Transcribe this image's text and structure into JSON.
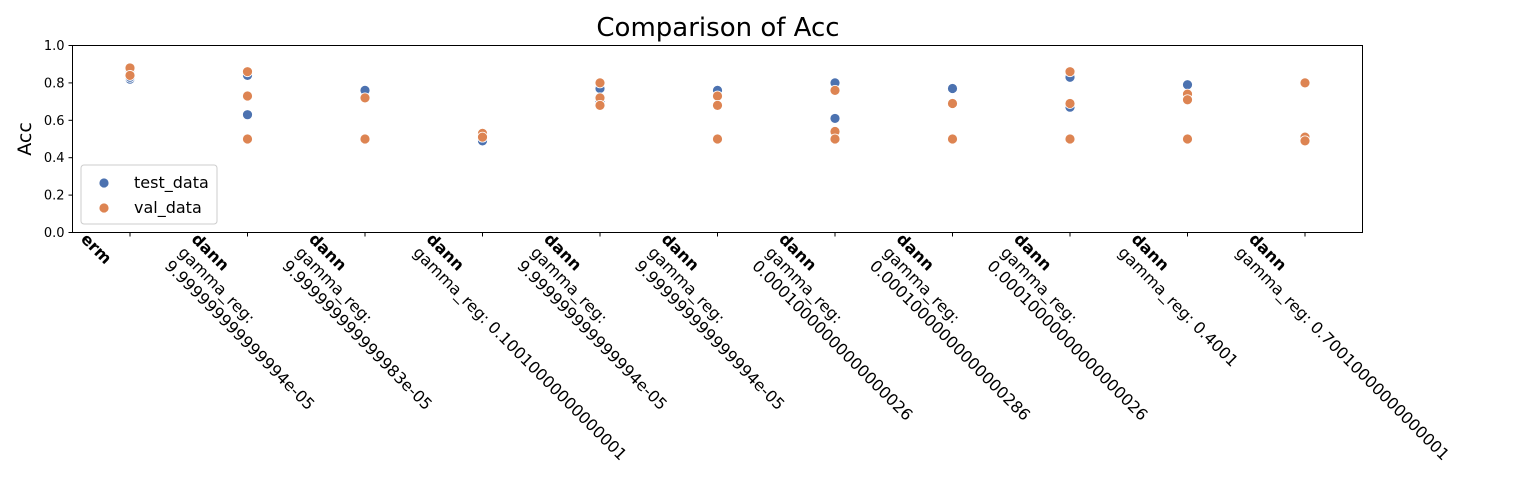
{
  "chart_data": {
    "type": "scatter",
    "title": "Comparison of Acc",
    "xlabel": "",
    "ylabel": "Acc",
    "ylim": [
      0.0,
      1.0
    ],
    "yticks": [
      "0.0",
      "0.2",
      "0.4",
      "0.6",
      "0.8",
      "1.0"
    ],
    "grid": false,
    "legend_position": "lower-left",
    "categories": [
      {
        "main": "erm",
        "sub": []
      },
      {
        "main": "dann",
        "sub": [
          "gamma_reg:",
          "9.999999999999994e-05"
        ]
      },
      {
        "main": "dann",
        "sub": [
          "gamma_reg:",
          "9.999999999999983e-05"
        ]
      },
      {
        "main": "dann",
        "sub": [
          "gamma_reg: 0.10010000000000001"
        ]
      },
      {
        "main": "dann",
        "sub": [
          "gamma_reg:",
          "9.999999999999994e-05"
        ]
      },
      {
        "main": "dann",
        "sub": [
          "gamma_reg:",
          "9.999999999999994e-05"
        ]
      },
      {
        "main": "dann",
        "sub": [
          "gamma_reg:",
          "0.00010000000000000026"
        ]
      },
      {
        "main": "dann",
        "sub": [
          "gamma_reg:",
          "0.00010000000000000286"
        ]
      },
      {
        "main": "dann",
        "sub": [
          "gamma_reg:",
          "0.00010000000000000026"
        ]
      },
      {
        "main": "dann",
        "sub": [
          "gamma_reg: 0.4001"
        ]
      },
      {
        "main": "dann",
        "sub": [
          "gamma_reg: 0.70010000000000001"
        ]
      }
    ],
    "series": [
      {
        "name": "test_data",
        "color": "#4c72b0",
        "points": [
          [
            0,
            0.82
          ],
          [
            0,
            0.87
          ],
          [
            0,
            0.83
          ],
          [
            1,
            0.84
          ],
          [
            1,
            0.63
          ],
          [
            1,
            0.5
          ],
          [
            2,
            0.76
          ],
          [
            2,
            0.5
          ],
          [
            3,
            0.49
          ],
          [
            3,
            0.51
          ],
          [
            4,
            0.77
          ],
          [
            4,
            0.72
          ],
          [
            4,
            0.7
          ],
          [
            5,
            0.76
          ],
          [
            5,
            0.68
          ],
          [
            5,
            0.5
          ],
          [
            6,
            0.8
          ],
          [
            6,
            0.61
          ],
          [
            6,
            0.5
          ],
          [
            7,
            0.77
          ],
          [
            7,
            0.5
          ],
          [
            8,
            0.83
          ],
          [
            8,
            0.67
          ],
          [
            8,
            0.5
          ],
          [
            9,
            0.79
          ],
          [
            9,
            0.5
          ],
          [
            10,
            0.8
          ],
          [
            10,
            0.5
          ]
        ]
      },
      {
        "name": "val_data",
        "color": "#dd8452",
        "points": [
          [
            0,
            0.88
          ],
          [
            0,
            0.84
          ],
          [
            1,
            0.86
          ],
          [
            1,
            0.73
          ],
          [
            1,
            0.5
          ],
          [
            2,
            0.72
          ],
          [
            2,
            0.5
          ],
          [
            3,
            0.53
          ],
          [
            3,
            0.51
          ],
          [
            4,
            0.8
          ],
          [
            4,
            0.72
          ],
          [
            4,
            0.68
          ],
          [
            5,
            0.73
          ],
          [
            5,
            0.68
          ],
          [
            5,
            0.5
          ],
          [
            6,
            0.76
          ],
          [
            6,
            0.54
          ],
          [
            6,
            0.5
          ],
          [
            7,
            0.69
          ],
          [
            7,
            0.5
          ],
          [
            8,
            0.86
          ],
          [
            8,
            0.69
          ],
          [
            8,
            0.5
          ],
          [
            9,
            0.74
          ],
          [
            9,
            0.71
          ],
          [
            9,
            0.5
          ],
          [
            10,
            0.8
          ],
          [
            10,
            0.51
          ],
          [
            10,
            0.49
          ]
        ]
      }
    ]
  }
}
